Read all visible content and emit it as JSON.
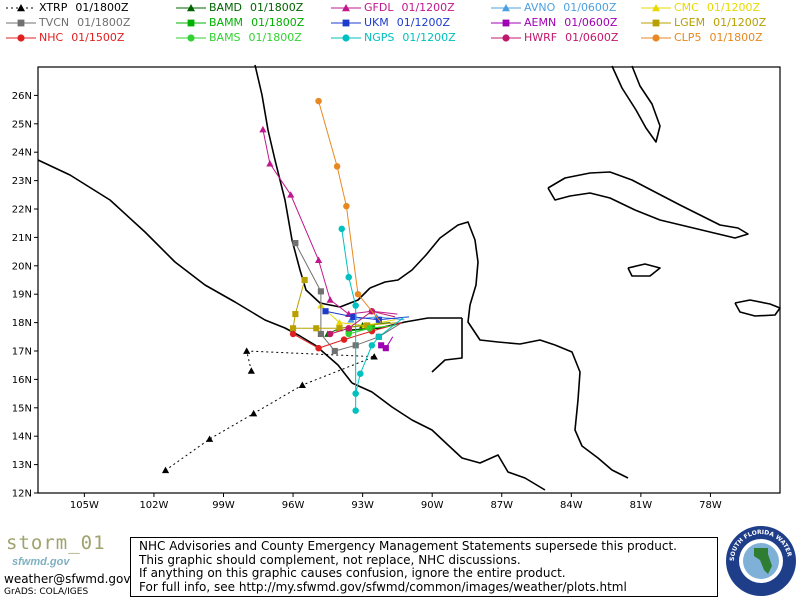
{
  "storm_name": "storm_01",
  "agency_logo_text": "sfwmd.gov",
  "contact_email": "weather@sfwmd.gov",
  "credit": "GrADS: COLA/IGES",
  "legend": [
    {
      "model": "XTRP",
      "time": "01/1800Z",
      "color": "#000000",
      "marker": "triangle",
      "dashed": true
    },
    {
      "model": "BAMD",
      "time": "01/1800Z",
      "color": "#006400",
      "marker": "triangle"
    },
    {
      "model": "GFDL",
      "time": "01/1200Z",
      "color": "#c0188c",
      "marker": "triangle"
    },
    {
      "model": "AVNO",
      "time": "01/0600Z",
      "color": "#4da0e0",
      "marker": "triangle"
    },
    {
      "model": "CMC",
      "time": "01/1200Z",
      "color": "#e8d800",
      "marker": "triangle"
    },
    {
      "model": "TVCN",
      "time": "01/1800Z",
      "color": "#707070",
      "marker": "square"
    },
    {
      "model": "BAMM",
      "time": "01/1800Z",
      "color": "#00b000",
      "marker": "square"
    },
    {
      "model": "UKM",
      "time": "01/1200Z",
      "color": "#1e3ccc",
      "marker": "square"
    },
    {
      "model": "AEMN",
      "time": "01/0600Z",
      "color": "#a000b4",
      "marker": "square"
    },
    {
      "model": "LGEM",
      "time": "01/1200Z",
      "color": "#b8a000",
      "marker": "square"
    },
    {
      "model": "NHC",
      "time": "01/1500Z",
      "color": "#e02020",
      "marker": "circle"
    },
    {
      "model": "BAMS",
      "time": "01/1800Z",
      "color": "#32d232",
      "marker": "circle"
    },
    {
      "model": "NGPS",
      "time": "01/1200Z",
      "color": "#00c0c0",
      "marker": "circle"
    },
    {
      "model": "HWRF",
      "time": "01/0600Z",
      "color": "#c0186c",
      "marker": "circle"
    },
    {
      "model": "CLP5",
      "time": "01/1800Z",
      "color": "#e88820",
      "marker": "circle"
    }
  ],
  "map": {
    "lon_range": [
      -107,
      -75
    ],
    "lat_range": [
      12,
      27
    ],
    "lon_ticks": [
      "105W",
      "102W",
      "99W",
      "96W",
      "93W",
      "90W",
      "87W",
      "84W",
      "81W",
      "78W"
    ],
    "lat_ticks": [
      "12N",
      "13N",
      "14N",
      "15N",
      "16N",
      "17N",
      "18N",
      "19N",
      "20N",
      "21N",
      "22N",
      "23N",
      "24N",
      "25N",
      "26N"
    ]
  },
  "tracks": [
    {
      "model": "XTRP",
      "color": "#000000",
      "marker": "triangle",
      "dashed": true,
      "points": [
        [
          -97.8,
          16.3
        ],
        [
          -98.0,
          17.0
        ],
        [
          -92.5,
          16.8
        ],
        [
          -95.6,
          15.8
        ],
        [
          -97.7,
          14.8
        ],
        [
          -99.6,
          13.9
        ],
        [
          -101.5,
          12.8
        ]
      ]
    },
    {
      "model": "BAMD",
      "color": "#006400",
      "marker": "triangle",
      "points": [
        [
          -91.8,
          18.0
        ],
        [
          -93.0,
          17.9
        ],
        [
          -94.0,
          17.8
        ],
        [
          -94.5,
          17.6
        ]
      ]
    },
    {
      "model": "GFDL",
      "color": "#c0188c",
      "marker": "triangle",
      "points": [
        [
          -91.5,
          18.3
        ],
        [
          -92.6,
          18.4
        ],
        [
          -93.6,
          18.3
        ],
        [
          -94.4,
          18.8
        ],
        [
          -94.9,
          20.2
        ],
        [
          -96.1,
          22.5
        ],
        [
          -97.0,
          23.6
        ],
        [
          -97.3,
          24.8
        ]
      ]
    },
    {
      "model": "AVNO",
      "color": "#4da0e0",
      "marker": "triangle",
      "points": [
        [
          -91.2,
          18.1
        ],
        [
          -92.4,
          18.2
        ],
        [
          -93.5,
          18.1
        ]
      ]
    },
    {
      "model": "CMC",
      "color": "#e8d800",
      "marker": "triangle",
      "points": [
        [
          -91.6,
          18.1
        ],
        [
          -92.9,
          17.9
        ],
        [
          -94.0,
          18.0
        ],
        [
          -94.8,
          18.6
        ]
      ]
    },
    {
      "model": "TVCN",
      "color": "#707070",
      "marker": "square",
      "points": [
        [
          -91.3,
          18.0
        ],
        [
          -92.3,
          17.5
        ],
        [
          -93.3,
          17.2
        ],
        [
          -94.2,
          17.0
        ],
        [
          -94.8,
          17.6
        ],
        [
          -94.8,
          19.1
        ],
        [
          -95.9,
          20.8
        ]
      ]
    },
    {
      "model": "BAMM",
      "color": "#00b000",
      "marker": "square",
      "points": [
        [
          -91.6,
          17.9
        ],
        [
          -92.6,
          17.8
        ],
        [
          -93.6,
          17.7
        ]
      ]
    },
    {
      "model": "UKM",
      "color": "#1e3ccc",
      "marker": "square",
      "points": [
        [
          -91.0,
          18.2
        ],
        [
          -92.3,
          18.1
        ],
        [
          -93.4,
          18.2
        ],
        [
          -94.6,
          18.4
        ]
      ]
    },
    {
      "model": "AEMN",
      "color": "#a000b4",
      "marker": "square",
      "points": [
        [
          -91.7,
          17.5
        ],
        [
          -92.0,
          17.1
        ],
        [
          -92.2,
          17.2
        ]
      ]
    },
    {
      "model": "LGEM",
      "color": "#b8a000",
      "marker": "square",
      "points": [
        [
          -91.5,
          18.0
        ],
        [
          -92.8,
          17.9
        ],
        [
          -94.0,
          17.8
        ],
        [
          -95.0,
          17.8
        ],
        [
          -96.0,
          17.8
        ],
        [
          -95.9,
          18.3
        ],
        [
          -95.5,
          19.5
        ]
      ]
    },
    {
      "model": "NHC",
      "color": "#e02020",
      "marker": "circle",
      "points": [
        [
          -91.3,
          18.0
        ],
        [
          -92.6,
          17.7
        ],
        [
          -93.8,
          17.4
        ],
        [
          -94.9,
          17.1
        ],
        [
          -96.0,
          17.6
        ]
      ]
    },
    {
      "model": "BAMS",
      "color": "#32d232",
      "marker": "circle",
      "points": [
        [
          -91.6,
          17.9
        ],
        [
          -92.7,
          17.8
        ],
        [
          -93.6,
          17.6
        ]
      ]
    },
    {
      "model": "NGPS",
      "color": "#00c0c0",
      "marker": "circle",
      "points": [
        [
          -91.2,
          18.2
        ],
        [
          -92.3,
          17.5
        ],
        [
          -92.6,
          17.2
        ],
        [
          -93.1,
          16.2
        ],
        [
          -93.3,
          15.5
        ],
        [
          -93.3,
          14.9
        ],
        [
          -93.3,
          18.6
        ],
        [
          -93.6,
          19.6
        ],
        [
          -93.9,
          21.3
        ]
      ]
    },
    {
      "model": "HWRF",
      "color": "#c0186c",
      "marker": "circle",
      "points": [
        [
          -91.6,
          18.2
        ],
        [
          -92.6,
          18.4
        ],
        [
          -93.6,
          17.8
        ],
        [
          -94.4,
          17.6
        ]
      ]
    },
    {
      "model": "CLP5",
      "color": "#e88820",
      "marker": "circle",
      "points": [
        [
          -92.2,
          18.0
        ],
        [
          -93.2,
          19.0
        ],
        [
          -93.7,
          22.1
        ],
        [
          -94.1,
          23.5
        ],
        [
          -94.9,
          25.8
        ]
      ]
    }
  ],
  "disclaimer": {
    "line1": "NHC Advisories and County Emergency Management Statements supersede this product.",
    "line2": "This graphic should complement, not replace, NHC discussions.",
    "line3": "If anything on this graphic causes confusion, ignore the entire product.",
    "line4": "For full info, see   http://my.sfwmd.gov/sfwmd/common/images/weather/plots.html"
  },
  "seal_text": "SOUTH FLORIDA WATER MANAGEMENT DISTRICT"
}
